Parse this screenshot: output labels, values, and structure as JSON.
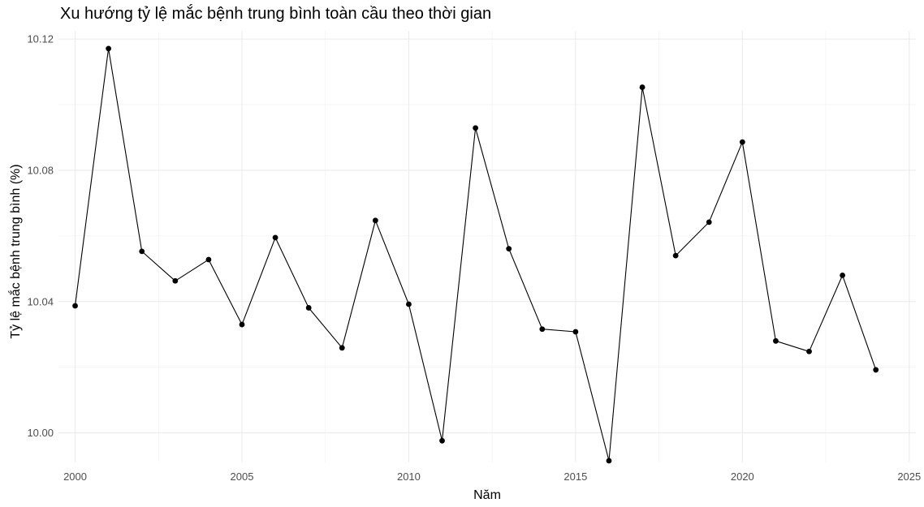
{
  "chart_data": {
    "type": "line",
    "title": "Xu hướng tỷ lệ mắc bệnh trung bình toàn cầu theo thời gian",
    "xlabel": "Năm",
    "ylabel": "Tỷ lệ mắc bệnh trung bình (%)",
    "xlim": [
      1999.5,
      2025.2
    ],
    "ylim": [
      9.991,
      10.1225
    ],
    "x_major_ticks": [
      2000,
      2005,
      2010,
      2015,
      2020,
      2025
    ],
    "x_tick_labels": [
      "2000",
      "2005",
      "2010",
      "2015",
      "2020",
      "2025"
    ],
    "y_major_ticks": [
      10.0,
      10.04,
      10.08,
      10.12
    ],
    "y_tick_labels": [
      "10.00",
      "10.04",
      "10.08",
      "10.12"
    ],
    "grid": true,
    "legend": "none",
    "line_color": "#000000",
    "series": [
      {
        "x": [
          2000,
          2001,
          2002,
          2003,
          2004,
          2005,
          2006,
          2007,
          2008,
          2009,
          2010,
          2011,
          2012,
          2013,
          2014,
          2015,
          2016,
          2017,
          2018,
          2019,
          2020,
          2021,
          2022,
          2023,
          2024
        ],
        "y": [
          10.0387,
          10.1171,
          10.0553,
          10.0463,
          10.0528,
          10.033,
          10.0595,
          10.0381,
          10.0259,
          10.0647,
          10.0392,
          9.9976,
          10.0929,
          10.0561,
          10.0316,
          10.0308,
          9.9915,
          10.1053,
          10.054,
          10.0642,
          10.0886,
          10.028,
          10.0248,
          10.048,
          10.0192
        ]
      }
    ]
  }
}
